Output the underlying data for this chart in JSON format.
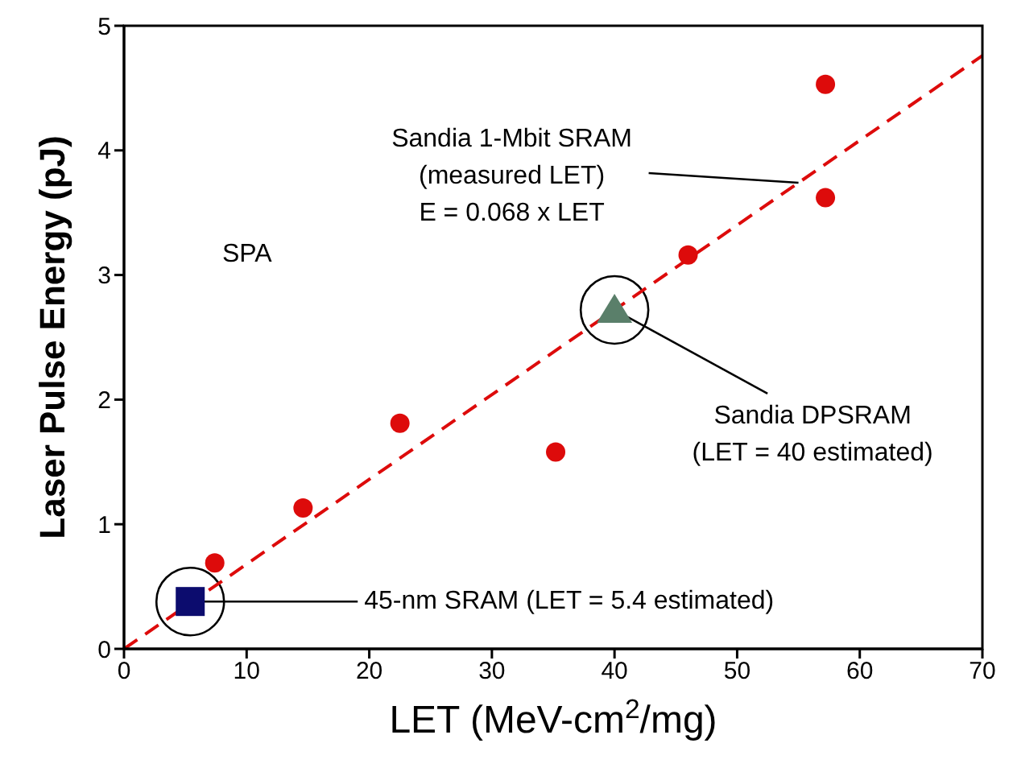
{
  "chart_data": {
    "type": "scatter",
    "xlabel": "LET (MeV-cm$^{2}$/mg)",
    "ylabel": "Laser Pulse Energy (pJ)",
    "xlim": [
      0,
      70
    ],
    "xticks": [
      0,
      10,
      20,
      30,
      40,
      50,
      60,
      70
    ],
    "ylim": [
      0,
      5
    ],
    "yticks": [
      0,
      1,
      2,
      3,
      4,
      5
    ],
    "grid": false,
    "legend": false,
    "series": [
      {
        "type": "scatter",
        "marker": "circle",
        "color": "#dd0b0b",
        "x": [
          7.4,
          14.6,
          22.5,
          35.2,
          46,
          57.2,
          57.2
        ],
        "values": [
          0.69,
          1.13,
          1.81,
          1.58,
          3.16,
          3.62,
          4.53
        ]
      },
      {
        "type": "line",
        "marker": "none",
        "line_style": "dashed",
        "color": "#dd0b0b",
        "x": [
          0,
          70
        ],
        "values": [
          0,
          4.76
        ]
      },
      {
        "type": "scatter",
        "marker": "triangle",
        "color": "#5a7f6a",
        "x": [
          40
        ],
        "values": [
          2.72
        ]
      },
      {
        "type": "scatter",
        "marker": "square",
        "color": "#0c0c6e",
        "x": [
          5.4
        ],
        "values": [
          0.38
        ]
      }
    ],
    "annotations": [
      {
        "text": "Sandia 1-Mbit SRAM\n(measured LET)\nE = 0.068 x LET",
        "x": 55,
        "y": 3.74
      },
      "SPA",
      {
        "text": "Sandia DPSRAM\n(LET = 40 estimated)",
        "x": 40,
        "y": 2.72
      },
      {
        "text": "45-nm SRAM (LET = 5.4 estimated)",
        "x": 5.4,
        "y": 0.38
      }
    ]
  }
}
